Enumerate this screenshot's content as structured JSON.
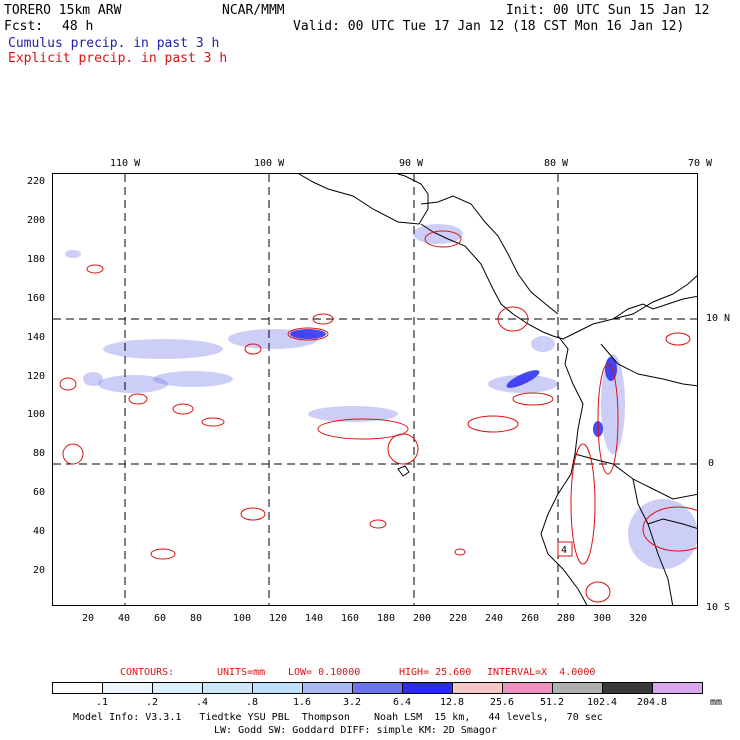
{
  "header": {
    "model": "TORERO 15km ARW",
    "org": "NCAR/MMM",
    "init": "Init: 00 UTC Sun 15 Jan 12",
    "fcst_label": "Fcst:",
    "fcst_value": "48 h",
    "valid": "Valid: 00 UTC Tue 17 Jan 12 (18 CST Mon 16 Jan 12)",
    "cumulus": "Cumulus precip. in past 3 h",
    "explicit": "Explicit precip. in past 3 h"
  },
  "map": {
    "top_lon_labels": [
      "110 W",
      "100 W",
      "90 W",
      "80 W",
      "70 W"
    ],
    "right_lat_labels": [
      "10 N",
      "0",
      "10 S"
    ],
    "y_ticks": [
      "220",
      "200",
      "180",
      "160",
      "140",
      "120",
      "100",
      "80",
      "60",
      "40",
      "20"
    ],
    "x_ticks": [
      "20",
      "40",
      "60",
      "80",
      "100",
      "120",
      "140",
      "160",
      "180",
      "200",
      "220",
      "240",
      "260",
      "280",
      "300",
      "320"
    ],
    "box_label": "4",
    "colors": {
      "coast": "#000000",
      "cumulus": "#3344dd",
      "explicit": "#dd1111",
      "grid": "#000000"
    }
  },
  "contour_info": {
    "contours": "CONTOURS:",
    "units": "UNITS=mm",
    "low": "LOW= 0.10000",
    "high": "HIGH= 25.600",
    "interval": "INTERVAL=X  4.0000"
  },
  "colorbar": {
    "labels": [
      ".1",
      ".2",
      ".4",
      ".8",
      "1.6",
      "3.2",
      "6.4",
      "12.8",
      "25.6",
      "51.2",
      "102.4",
      "204.8"
    ],
    "unit": "mm",
    "colors": [
      "#ffffff",
      "#eef6ff",
      "#ddeeff",
      "#cce8f6",
      "#bfe0f8",
      "#a8b8f0",
      "#6c74ec",
      "#2a2af0",
      "#f4c8c8",
      "#ee90c0",
      "#b0b0b0",
      "#3a3a3a",
      "#d8a8ee"
    ]
  },
  "footer": {
    "line1": "Model Info: V3.3.1   Tiedtke YSU PBL  Thompson    Noah LSM  15 km,   44 levels,   70 sec",
    "line2": "LW: Godd SW: Goddard DIFF: simple KM: 2D Smagor"
  }
}
